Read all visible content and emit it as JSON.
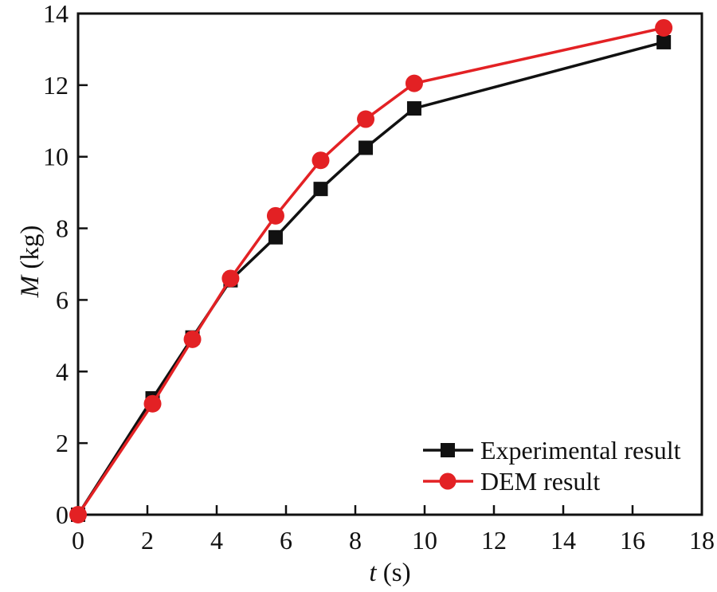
{
  "chart_data": {
    "type": "line",
    "title": "",
    "x": [
      0,
      2.15,
      3.3,
      4.4,
      5.7,
      7.0,
      8.3,
      9.7,
      16.9
    ],
    "series": [
      {
        "name": "Experimental result",
        "marker": "square",
        "color": "#111111",
        "values": [
          0,
          3.25,
          4.95,
          6.55,
          7.75,
          9.1,
          10.25,
          11.35,
          13.2
        ]
      },
      {
        "name": "DEM result",
        "marker": "circle",
        "color": "#e32124",
        "values": [
          0,
          3.1,
          4.9,
          6.6,
          8.35,
          9.9,
          11.05,
          12.05,
          13.6
        ]
      }
    ],
    "xlabel": {
      "italic": "t",
      "rest": " (s)"
    },
    "ylabel": {
      "italic": "M",
      "rest": " (kg)"
    },
    "xlim": [
      0,
      18
    ],
    "ylim": [
      0,
      14
    ],
    "xticks": [
      0,
      2,
      4,
      6,
      8,
      10,
      12,
      14,
      16,
      18
    ],
    "yticks": [
      0,
      2,
      4,
      6,
      8,
      10,
      12,
      14
    ],
    "grid": false,
    "legend_position": "inside-lower-right",
    "axis_color": "#111111",
    "background_color": "#ffffff"
  }
}
